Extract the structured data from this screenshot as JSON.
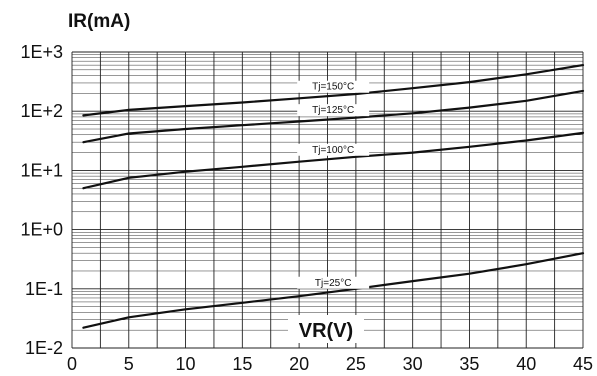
{
  "chart_data": {
    "type": "line",
    "ylabel": "IR(mA)",
    "xlabel": "VR(V)",
    "y_scale": "log",
    "ylim": [
      0.01,
      1000
    ],
    "xlim": [
      0,
      45
    ],
    "grid": true,
    "x_ticks": [
      "0",
      "5",
      "10",
      "15",
      "20",
      "25",
      "30",
      "35",
      "40",
      "45"
    ],
    "y_ticks": [
      "1E-2",
      "1E-1",
      "1E+0",
      "1E+1",
      "1E+2",
      "1E+3"
    ],
    "series": [
      {
        "name": "Tj=150°C",
        "x": [
          1,
          5,
          10,
          15,
          20,
          25,
          30,
          35,
          40,
          45
        ],
        "y": [
          85,
          105,
          122,
          140,
          165,
          195,
          245,
          310,
          420,
          600
        ]
      },
      {
        "name": "Tj=125°C",
        "x": [
          1,
          5,
          10,
          15,
          20,
          25,
          30,
          35,
          40,
          45
        ],
        "y": [
          30,
          42,
          50,
          58,
          67,
          78,
          92,
          115,
          150,
          220
        ]
      },
      {
        "name": "Tj=100°C",
        "x": [
          1,
          5,
          10,
          15,
          20,
          25,
          30,
          35,
          40,
          45
        ],
        "y": [
          5,
          7.5,
          9.5,
          11.5,
          14,
          17,
          20,
          25,
          32,
          43
        ]
      },
      {
        "name": "Tj=25°C",
        "x": [
          1,
          5,
          10,
          15,
          20,
          25,
          30,
          35,
          40,
          45
        ],
        "y": [
          0.022,
          0.033,
          0.045,
          0.058,
          0.075,
          0.1,
          0.135,
          0.18,
          0.26,
          0.4
        ]
      }
    ]
  }
}
